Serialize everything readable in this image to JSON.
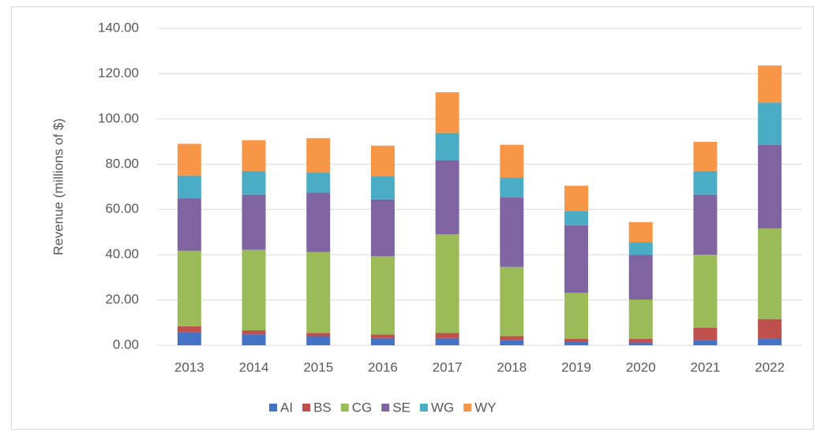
{
  "chart_data": {
    "type": "stacked_bar",
    "y_label": "Revenue (millions of $)",
    "categories": [
      "2013",
      "2014",
      "2015",
      "2016",
      "2017",
      "2018",
      "2019",
      "2020",
      "2021",
      "2022"
    ],
    "series": [
      {
        "name": "AI",
        "color": "#4472c4",
        "values": [
          5.8,
          4.8,
          4.0,
          3.2,
          3.2,
          2.4,
          1.4,
          1.2,
          2.4,
          2.8
        ]
      },
      {
        "name": "BS",
        "color": "#c0504d",
        "values": [
          2.6,
          1.8,
          1.5,
          1.5,
          2.2,
          1.6,
          1.4,
          1.6,
          5.4,
          8.8
        ]
      },
      {
        "name": "CG",
        "color": "#9bbb59",
        "values": [
          33.3,
          35.6,
          35.7,
          34.6,
          43.6,
          30.6,
          20.4,
          17.4,
          32.2,
          40.0
        ]
      },
      {
        "name": "SE",
        "color": "#8064a2",
        "values": [
          23.3,
          24.4,
          26.2,
          25.2,
          32.8,
          30.8,
          29.8,
          19.8,
          26.6,
          37.0
        ]
      },
      {
        "name": "WG",
        "color": "#4bacc6",
        "values": [
          10.0,
          10.4,
          9.0,
          10.3,
          12.0,
          8.6,
          6.2,
          5.6,
          10.4,
          18.6
        ]
      },
      {
        "name": "WY",
        "color": "#f79646",
        "values": [
          14.0,
          13.6,
          15.1,
          13.4,
          18.0,
          14.6,
          11.3,
          8.8,
          12.9,
          16.4
        ]
      }
    ],
    "ylim": [
      0,
      140
    ],
    "yticks": [
      {
        "value": 0,
        "label": "0.00"
      },
      {
        "value": 20,
        "label": "20.00"
      },
      {
        "value": 40,
        "label": "40.00"
      },
      {
        "value": 60,
        "label": "60.00"
      },
      {
        "value": 80,
        "label": "80.00"
      },
      {
        "value": 100,
        "label": "100.00"
      },
      {
        "value": 120,
        "label": "120.00"
      },
      {
        "value": 140,
        "label": "140.00"
      }
    ],
    "grid": true,
    "legend": "bottom"
  }
}
